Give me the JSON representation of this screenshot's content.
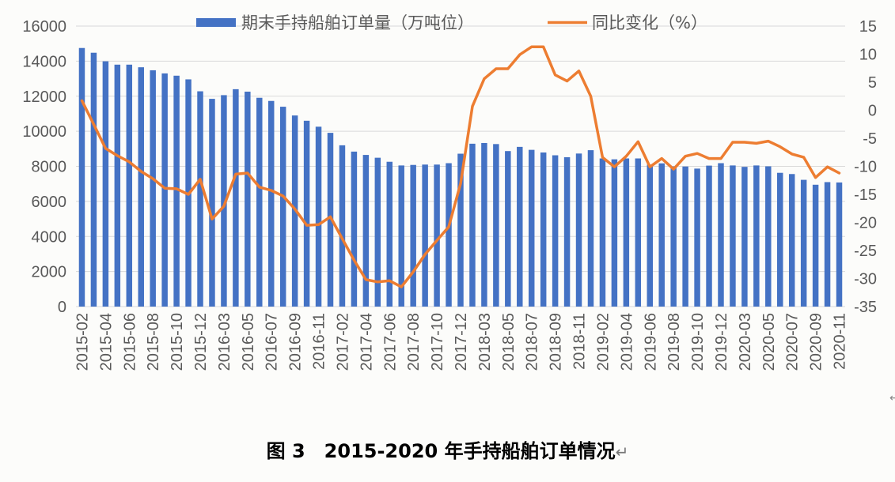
{
  "chart_data": {
    "type": "bar+line",
    "categories": [
      "2015-02",
      "2015-03",
      "2015-04",
      "2015-05",
      "2015-06",
      "2015-07",
      "2015-08",
      "2015-09",
      "2015-10",
      "2015-11",
      "2015-12",
      "2016-01",
      "2016-03",
      "2016-04",
      "2016-05",
      "2016-06",
      "2016-07",
      "2016-08",
      "2016-09",
      "2016-10",
      "2016-11",
      "2016-12",
      "2017-02",
      "2017-03",
      "2017-04",
      "2017-05",
      "2017-06",
      "2017-07",
      "2017-08",
      "2017-09",
      "2017-10",
      "2017-11",
      "2017-12",
      "2018-01",
      "2018-03",
      "2018-04",
      "2018-05",
      "2018-06",
      "2018-07",
      "2018-08",
      "2018-09",
      "2018-10",
      "2018-11",
      "2018-12",
      "2019-02",
      "2019-03",
      "2019-04",
      "2019-05",
      "2019-06",
      "2019-07",
      "2019-08",
      "2019-09",
      "2019-10",
      "2019-11",
      "2019-12",
      "2020-01",
      "2020-03",
      "2020-04",
      "2020-05",
      "2020-06",
      "2020-07",
      "2020-08",
      "2020-09",
      "2020-10",
      "2020-11"
    ],
    "tick_labels": [
      "2015-02",
      "2015-04",
      "2015-06",
      "2015-08",
      "2015-10",
      "2015-12",
      "2016-03",
      "2016-05",
      "2016-07",
      "2016-09",
      "2016-11",
      "2017-02",
      "2017-04",
      "2017-06",
      "2017-08",
      "2017-10",
      "2017-12",
      "2018-03",
      "2018-05",
      "2018-07",
      "2018-09",
      "2018-11",
      "2019-02",
      "2019-04",
      "2019-06",
      "2019-08",
      "2019-10",
      "2019-12",
      "2020-03",
      "2020-05",
      "2020-07",
      "2020-09",
      "2020-11"
    ],
    "series": [
      {
        "name": "期末手持船舶订单量（万吨位）",
        "type": "bar",
        "axis": "left",
        "color": "#4472c4",
        "values": [
          14750,
          14480,
          13990,
          13800,
          13800,
          13650,
          13480,
          13300,
          13170,
          12960,
          12280,
          11850,
          12060,
          12400,
          12260,
          11910,
          11730,
          11400,
          10900,
          10600,
          10260,
          9910,
          9200,
          8840,
          8650,
          8490,
          8260,
          8050,
          8080,
          8100,
          8100,
          8180,
          8720,
          9290,
          9330,
          9270,
          8870,
          9110,
          8940,
          8790,
          8630,
          8520,
          8730,
          8920,
          8450,
          8400,
          8450,
          8450,
          8100,
          8170,
          8000,
          7990,
          7870,
          8040,
          8180,
          8050,
          7970,
          8050,
          8000,
          7630,
          7560,
          7230,
          6950,
          7100,
          7080
        ]
      },
      {
        "name": "同比变化（%）",
        "type": "line",
        "axis": "right",
        "color": "#ed7d31",
        "values": [
          1.7,
          -2.5,
          -6.8,
          -8.1,
          -9.2,
          -10.9,
          -12.2,
          -13.9,
          -14.0,
          -15.0,
          -12.3,
          -19.4,
          -17.1,
          -11.4,
          -11.2,
          -13.7,
          -14.3,
          -15.3,
          -17.6,
          -20.5,
          -20.4,
          -19.0,
          -22.9,
          -26.7,
          -30.2,
          -30.6,
          -30.4,
          -31.5,
          -28.8,
          -25.7,
          -23.2,
          -20.8,
          -13.1,
          0.7,
          5.6,
          7.4,
          7.4,
          9.9,
          11.3,
          11.3,
          6.3,
          5.2,
          7.0,
          2.5,
          -8.4,
          -10.1,
          -8.2,
          -5.6,
          -10.1,
          -8.6,
          -10.5,
          -8.2,
          -7.7,
          -8.6,
          -8.6,
          -5.7,
          -5.7,
          -5.9,
          -5.5,
          -6.5,
          -7.8,
          -8.4,
          -12.0,
          -10.1,
          -11.2
        ]
      }
    ],
    "y_left": {
      "min": 0,
      "max": 16000,
      "ticks": [
        "16000",
        "14000",
        "12000",
        "10000",
        "8000",
        "6000",
        "4000",
        "2000",
        "0"
      ]
    },
    "y_right": {
      "min": -35,
      "max": 15,
      "ticks": [
        "15",
        "10",
        "5",
        "0",
        "-5",
        "-10",
        "-15",
        "-20",
        "-25",
        "-30",
        "-35"
      ]
    },
    "grid": true,
    "legend_position": "top-center"
  },
  "caption": {
    "text": "图 3　2015-2020 年手持船舶订单情况",
    "return_mark": "↵"
  },
  "corner_mark": "↵"
}
